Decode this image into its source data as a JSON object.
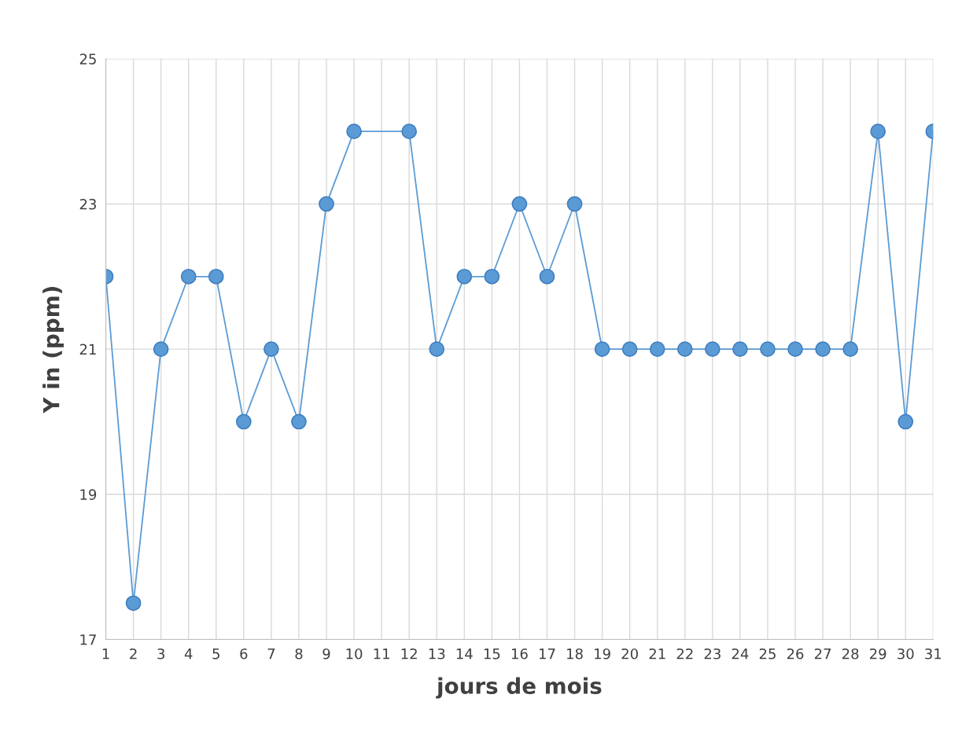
{
  "chart_data": {
    "type": "line",
    "xlabel": "jours de mois",
    "ylabel": "Y in (ppm)",
    "x": [
      1,
      2,
      3,
      4,
      5,
      6,
      7,
      8,
      9,
      10,
      12,
      13,
      14,
      15,
      16,
      17,
      18,
      19,
      20,
      21,
      22,
      23,
      24,
      25,
      26,
      27,
      28,
      29,
      30,
      31
    ],
    "series": [
      {
        "color": "#5b9bd5",
        "values": [
          22,
          17.5,
          21,
          22,
          22,
          20,
          21,
          20,
          23,
          24,
          24,
          21,
          22,
          22,
          23,
          22,
          23,
          21,
          21,
          21,
          21,
          21,
          21,
          21,
          21,
          21,
          21,
          24,
          20,
          24
        ]
      }
    ],
    "xlim": [
      1,
      31
    ],
    "xticks": [
      1,
      2,
      3,
      4,
      5,
      6,
      7,
      8,
      9,
      10,
      11,
      12,
      13,
      14,
      15,
      16,
      17,
      18,
      19,
      20,
      21,
      22,
      23,
      24,
      25,
      26,
      27,
      28,
      29,
      30,
      31
    ],
    "ylim": [
      17,
      25
    ],
    "yticks": [
      17,
      19,
      21,
      23,
      25
    ],
    "grid": true,
    "marker": "circle",
    "line_style": "solid"
  }
}
